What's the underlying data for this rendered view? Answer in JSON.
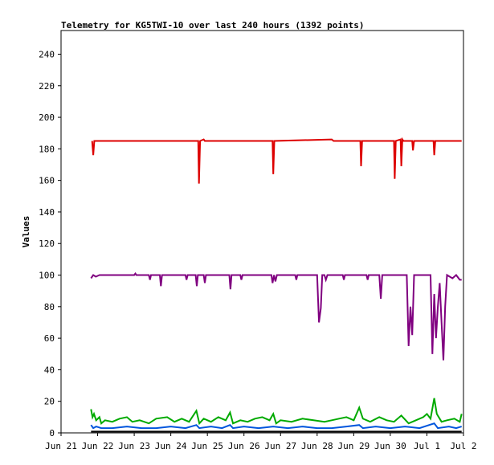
{
  "chart_data": {
    "type": "line",
    "title": "Telemetry for KG5TWI-10 over last 240 hours (1392 points)",
    "xlabel": "",
    "ylabel": "Values",
    "x_tick_labels": [
      "Jun 21",
      "Jun 22",
      "Jun 23",
      "Jun 24",
      "Jun 25",
      "Jun 26",
      "Jun 27",
      "Jun 28",
      "Jun 29",
      "Jun 30",
      "Jul 1",
      "Jul 2"
    ],
    "xlim": [
      0,
      11
    ],
    "ylim": [
      0,
      255
    ],
    "yticks": [
      0,
      20,
      40,
      60,
      80,
      100,
      120,
      140,
      160,
      180,
      200,
      220,
      240
    ],
    "grid": false,
    "legend": "none",
    "series": [
      {
        "color": "#dd0000",
        "points": [
          [
            0.85,
            185
          ],
          [
            0.88,
            176
          ],
          [
            0.91,
            185
          ],
          [
            3.75,
            185
          ],
          [
            3.77,
            158
          ],
          [
            3.8,
            185
          ],
          [
            3.9,
            186
          ],
          [
            3.93,
            185
          ],
          [
            5.78,
            185
          ],
          [
            5.8,
            164
          ],
          [
            5.83,
            185
          ],
          [
            7.4,
            186
          ],
          [
            7.45,
            185
          ],
          [
            8.18,
            185
          ],
          [
            8.2,
            169
          ],
          [
            8.23,
            185
          ],
          [
            9.1,
            185
          ],
          [
            9.12,
            161
          ],
          [
            9.15,
            185
          ],
          [
            9.28,
            186
          ],
          [
            9.3,
            169
          ],
          [
            9.33,
            186
          ],
          [
            9.36,
            185
          ],
          [
            9.6,
            185
          ],
          [
            9.62,
            179
          ],
          [
            9.65,
            185
          ],
          [
            10.18,
            185
          ],
          [
            10.2,
            176
          ],
          [
            10.23,
            185
          ],
          [
            10.95,
            185
          ]
        ]
      },
      {
        "color": "#800080",
        "points": [
          [
            0.82,
            98
          ],
          [
            0.88,
            100
          ],
          [
            0.95,
            99
          ],
          [
            1.05,
            100
          ],
          [
            2.0,
            100
          ],
          [
            2.03,
            101
          ],
          [
            2.06,
            100
          ],
          [
            2.4,
            100
          ],
          [
            2.43,
            97
          ],
          [
            2.46,
            100
          ],
          [
            2.7,
            100
          ],
          [
            2.73,
            93
          ],
          [
            2.76,
            100
          ],
          [
            3.4,
            100
          ],
          [
            3.43,
            97
          ],
          [
            3.46,
            100
          ],
          [
            3.68,
            100
          ],
          [
            3.71,
            93
          ],
          [
            3.74,
            100
          ],
          [
            3.9,
            100
          ],
          [
            3.93,
            95
          ],
          [
            3.96,
            100
          ],
          [
            4.6,
            100
          ],
          [
            4.63,
            91
          ],
          [
            4.66,
            100
          ],
          [
            4.9,
            100
          ],
          [
            4.93,
            97
          ],
          [
            4.96,
            100
          ],
          [
            5.75,
            100
          ],
          [
            5.78,
            95
          ],
          [
            5.82,
            100
          ],
          [
            5.86,
            96
          ],
          [
            5.9,
            100
          ],
          [
            6.4,
            100
          ],
          [
            6.43,
            97
          ],
          [
            6.46,
            100
          ],
          [
            6.95,
            100
          ],
          [
            7.0,
            100
          ],
          [
            7.05,
            70
          ],
          [
            7.1,
            79
          ],
          [
            7.14,
            100
          ],
          [
            7.2,
            100
          ],
          [
            7.24,
            97
          ],
          [
            7.28,
            100
          ],
          [
            7.7,
            100
          ],
          [
            7.73,
            97
          ],
          [
            7.76,
            100
          ],
          [
            8.35,
            100
          ],
          [
            8.38,
            97
          ],
          [
            8.41,
            100
          ],
          [
            8.7,
            100
          ],
          [
            8.74,
            85
          ],
          [
            8.78,
            100
          ],
          [
            9.15,
            100
          ],
          [
            9.45,
            100
          ],
          [
            9.5,
            55
          ],
          [
            9.55,
            80
          ],
          [
            9.6,
            62
          ],
          [
            9.65,
            100
          ],
          [
            9.8,
            100
          ],
          [
            10.1,
            100
          ],
          [
            10.15,
            50
          ],
          [
            10.2,
            88
          ],
          [
            10.25,
            60
          ],
          [
            10.3,
            80
          ],
          [
            10.35,
            95
          ],
          [
            10.4,
            70
          ],
          [
            10.45,
            46
          ],
          [
            10.5,
            80
          ],
          [
            10.55,
            100
          ],
          [
            10.7,
            98
          ],
          [
            10.8,
            100
          ],
          [
            10.9,
            97
          ],
          [
            10.95,
            97
          ]
        ]
      },
      {
        "color": "#00aa00",
        "points": [
          [
            0.82,
            15
          ],
          [
            0.86,
            10
          ],
          [
            0.9,
            12
          ],
          [
            0.96,
            8
          ],
          [
            1.05,
            10
          ],
          [
            1.1,
            6
          ],
          [
            1.2,
            8
          ],
          [
            1.4,
            7
          ],
          [
            1.6,
            9
          ],
          [
            1.8,
            10
          ],
          [
            1.95,
            7
          ],
          [
            2.15,
            8
          ],
          [
            2.4,
            6
          ],
          [
            2.6,
            9
          ],
          [
            2.9,
            10
          ],
          [
            3.1,
            7
          ],
          [
            3.3,
            9
          ],
          [
            3.5,
            7
          ],
          [
            3.7,
            14
          ],
          [
            3.78,
            6
          ],
          [
            3.9,
            9
          ],
          [
            4.1,
            7
          ],
          [
            4.3,
            10
          ],
          [
            4.5,
            8
          ],
          [
            4.62,
            13
          ],
          [
            4.7,
            6
          ],
          [
            4.9,
            8
          ],
          [
            5.1,
            7
          ],
          [
            5.3,
            9
          ],
          [
            5.5,
            10
          ],
          [
            5.7,
            8
          ],
          [
            5.8,
            12
          ],
          [
            5.88,
            6
          ],
          [
            6.0,
            8
          ],
          [
            6.3,
            7
          ],
          [
            6.6,
            9
          ],
          [
            6.9,
            8
          ],
          [
            7.2,
            7
          ],
          [
            7.4,
            8
          ],
          [
            7.6,
            9
          ],
          [
            7.8,
            10
          ],
          [
            8.0,
            8
          ],
          [
            8.15,
            16
          ],
          [
            8.25,
            9
          ],
          [
            8.45,
            7
          ],
          [
            8.7,
            10
          ],
          [
            8.9,
            8
          ],
          [
            9.1,
            7
          ],
          [
            9.3,
            11
          ],
          [
            9.5,
            6
          ],
          [
            9.7,
            8
          ],
          [
            9.9,
            10
          ],
          [
            10.0,
            12
          ],
          [
            10.1,
            9
          ],
          [
            10.2,
            22
          ],
          [
            10.27,
            12
          ],
          [
            10.4,
            7
          ],
          [
            10.55,
            8
          ],
          [
            10.75,
            9
          ],
          [
            10.9,
            7
          ],
          [
            10.95,
            12
          ]
        ]
      },
      {
        "color": "#0055dd",
        "points": [
          [
            0.82,
            5
          ],
          [
            0.88,
            3
          ],
          [
            0.96,
            4
          ],
          [
            1.1,
            3
          ],
          [
            1.4,
            3
          ],
          [
            1.8,
            4
          ],
          [
            2.2,
            3
          ],
          [
            2.6,
            3
          ],
          [
            3.0,
            4
          ],
          [
            3.4,
            3
          ],
          [
            3.7,
            5
          ],
          [
            3.78,
            3
          ],
          [
            4.1,
            4
          ],
          [
            4.4,
            3
          ],
          [
            4.62,
            5
          ],
          [
            4.7,
            3
          ],
          [
            5.0,
            4
          ],
          [
            5.4,
            3
          ],
          [
            5.8,
            4
          ],
          [
            6.2,
            3
          ],
          [
            6.6,
            4
          ],
          [
            7.0,
            3
          ],
          [
            7.4,
            3
          ],
          [
            7.8,
            4
          ],
          [
            8.15,
            5
          ],
          [
            8.25,
            3
          ],
          [
            8.6,
            4
          ],
          [
            9.0,
            3
          ],
          [
            9.4,
            4
          ],
          [
            9.8,
            3
          ],
          [
            10.2,
            6
          ],
          [
            10.3,
            3
          ],
          [
            10.6,
            4
          ],
          [
            10.8,
            3
          ],
          [
            10.95,
            4
          ]
        ]
      },
      {
        "color": "#000000",
        "points": [
          [
            0.82,
            0.8
          ],
          [
            10.95,
            0.8
          ]
        ]
      }
    ]
  }
}
